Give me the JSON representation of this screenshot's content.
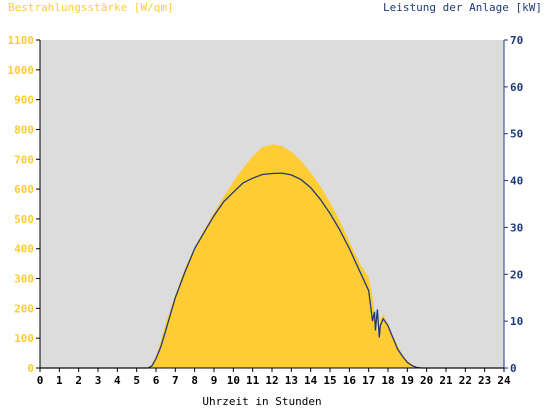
{
  "chart_data": {
    "type": "area",
    "ylabel_left": "Bestrahlungsstärke [W/qm]",
    "ylabel_right": "Leistung der Anlage [kW]",
    "xlabel": "Uhrzeit in Stunden",
    "xlim": [
      0,
      24
    ],
    "ylim_left": [
      0,
      1100
    ],
    "ylim_right": [
      0,
      70
    ],
    "x_ticks": [
      0,
      1,
      2,
      3,
      4,
      5,
      6,
      7,
      8,
      9,
      10,
      11,
      12,
      13,
      14,
      15,
      16,
      17,
      18,
      19,
      20,
      21,
      22,
      23,
      24
    ],
    "y_ticks_left": [
      0,
      100,
      200,
      300,
      400,
      500,
      600,
      700,
      800,
      900,
      1000,
      1100
    ],
    "y_ticks_right": [
      0,
      10,
      20,
      30,
      40,
      50,
      60,
      70
    ],
    "grid": false,
    "colors": {
      "plot_background": "#dcdcdc",
      "irradiance_fill": "#ffcc33",
      "power_line": "#1f3a78",
      "left_axis": "#ffcc33",
      "right_axis": "#1f3a78"
    },
    "series": [
      {
        "axis": "left",
        "x": [
          0,
          5.5,
          5.75,
          6,
          6.25,
          6.5,
          7,
          7.5,
          8,
          8.5,
          9,
          9.5,
          10,
          10.5,
          11,
          11.5,
          12,
          12.5,
          13,
          13.5,
          14,
          14.5,
          15,
          15.5,
          16,
          16.5,
          17,
          17.2,
          17.4,
          17.5,
          17.6,
          17.75,
          18,
          18.25,
          18.5,
          18.75,
          19,
          19.25,
          19.5,
          19.75,
          20,
          24
        ],
        "values": [
          0,
          0,
          10,
          40,
          90,
          150,
          245,
          335,
          405,
          465,
          520,
          575,
          625,
          670,
          710,
          740,
          750,
          745,
          725,
          695,
          655,
          610,
          555,
          495,
          425,
          355,
          305,
          240,
          140,
          110,
          165,
          180,
          150,
          110,
          75,
          45,
          25,
          12,
          5,
          1,
          0,
          0
        ]
      },
      {
        "axis": "right",
        "x": [
          0,
          5.6,
          5.8,
          6,
          6.25,
          6.5,
          7,
          7.5,
          8,
          8.5,
          9,
          9.5,
          10,
          10.5,
          11,
          11.5,
          12,
          12.5,
          13,
          13.5,
          14,
          14.5,
          15,
          15.5,
          16,
          16.5,
          17,
          17.2,
          17.3,
          17.35,
          17.45,
          17.55,
          17.6,
          17.75,
          18,
          18.25,
          18.5,
          18.75,
          19,
          19.25,
          19.5,
          19.75,
          20,
          24
        ],
        "values": [
          0,
          0,
          0.5,
          2,
          4.5,
          8,
          15,
          20.5,
          25.5,
          29,
          32.5,
          35.5,
          37.5,
          39.5,
          40.5,
          41.3,
          41.5,
          41.6,
          41.2,
          40.2,
          38.5,
          36,
          33,
          29.5,
          25.5,
          21,
          16.5,
          10,
          12,
          8,
          12.5,
          6.5,
          9,
          10.5,
          9,
          6.5,
          4,
          2.5,
          1.2,
          0.5,
          0.1,
          0,
          0,
          0
        ]
      }
    ]
  }
}
